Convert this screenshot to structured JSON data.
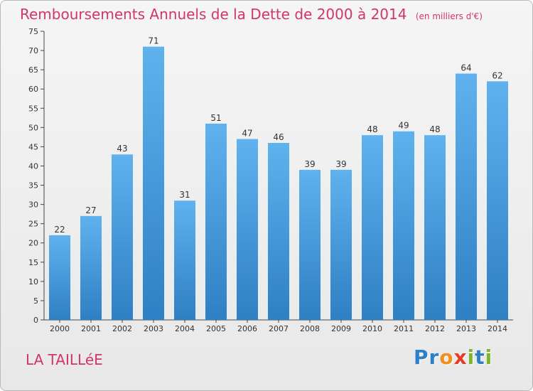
{
  "header": {
    "title": "Remboursements Annuels de la Dette de 2000 à 2014",
    "subtitle": "(en milliers d'€)"
  },
  "footer": {
    "commune": "LA TAILLéE",
    "logo_text": "Proxiti",
    "logo_letters": [
      {
        "ch": "P",
        "color": "#2e7fc7"
      },
      {
        "ch": "r",
        "color": "#2e7fc7"
      },
      {
        "ch": "o",
        "color": "#f28e1c"
      },
      {
        "ch": "x",
        "color": "#e63b2a"
      },
      {
        "ch": "i",
        "color": "#7ab829"
      },
      {
        "ch": "t",
        "color": "#2e7fc7"
      },
      {
        "ch": "i",
        "color": "#7ab829"
      }
    ]
  },
  "chart_data": {
    "type": "bar",
    "title": "Remboursements Annuels de la Dette de 2000 à 2014",
    "subtitle": "(en milliers d'€)",
    "categories": [
      "2000",
      "2001",
      "2002",
      "2003",
      "2004",
      "2005",
      "2006",
      "2007",
      "2008",
      "2009",
      "2010",
      "2011",
      "2012",
      "2013",
      "2014"
    ],
    "values": [
      22,
      27,
      43,
      71,
      31,
      51,
      47,
      46,
      39,
      39,
      48,
      49,
      48,
      64,
      62
    ],
    "ylim": [
      0,
      75
    ],
    "yticks": [
      0,
      5,
      10,
      15,
      20,
      25,
      30,
      35,
      40,
      45,
      50,
      55,
      60,
      65,
      70,
      75
    ],
    "grid": false,
    "bar_color": "#3b8fd4",
    "bar_color_light": "#5aaeea",
    "label_color": "#333333"
  }
}
